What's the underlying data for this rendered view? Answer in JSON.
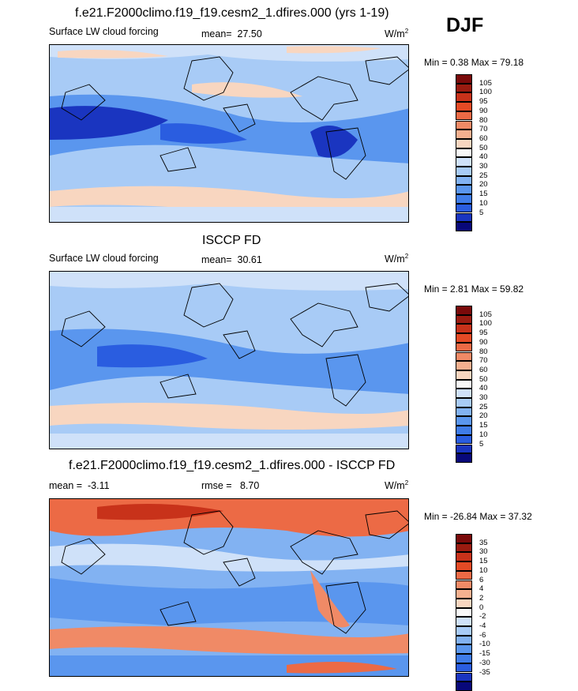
{
  "season": "DJF",
  "colors": {
    "abs_scale": [
      "#08087a",
      "#1a35c0",
      "#2a5de0",
      "#3f7ce8",
      "#5a96ee",
      "#82b2f2",
      "#a8cbf6",
      "#cfe1f9",
      "#f8f8f8",
      "#f8d6c0",
      "#f4b08f",
      "#f08a66",
      "#ec6a45",
      "#e44a25",
      "#c8321a",
      "#9a1b10",
      "#7a0a0a"
    ],
    "diff_scale": [
      "#08087a",
      "#1a35c0",
      "#2a5de0",
      "#3f7ce8",
      "#5a96ee",
      "#82b2f2",
      "#a8cbf6",
      "#cfe1f9",
      "#f8f8f8",
      "#f8d6c0",
      "#f4b08f",
      "#f08a66",
      "#ec6a45",
      "#e44a25",
      "#c8321a",
      "#9a1b10",
      "#7a0a0a"
    ]
  },
  "panel1": {
    "title": "f.e21.F2000climo.f19_f19.cesm2_1.dfires.000 (yrs 1-19)",
    "variable": "Surface LW cloud forcing",
    "mean_label": "mean=",
    "mean_value": "27.50",
    "units": "W/m",
    "units_exp": "2",
    "minmax": "Min =   0.38 Max =  79.18",
    "colorbar_labels": [
      "105",
      "100",
      "95",
      "90",
      "80",
      "70",
      "60",
      "50",
      "40",
      "30",
      "25",
      "20",
      "15",
      "10",
      "5"
    ]
  },
  "panel2": {
    "title": "ISCCP FD",
    "variable": "Surface LW cloud forcing",
    "mean_label": "mean=",
    "mean_value": "30.61",
    "units": "W/m",
    "units_exp": "2",
    "minmax": "Min =   2.81 Max =  59.82",
    "colorbar_labels": [
      "105",
      "100",
      "95",
      "90",
      "80",
      "70",
      "60",
      "50",
      "40",
      "30",
      "25",
      "20",
      "15",
      "10",
      "5"
    ]
  },
  "panel3": {
    "title": "f.e21.F2000climo.f19_f19.cesm2_1.dfires.000 - ISCCP FD",
    "mean_label": "mean =",
    "mean_value": "-3.11",
    "rmse_label": "rmse =",
    "rmse_value": "8.70",
    "units": "W/m",
    "units_exp": "2",
    "minmax": "Min = -26.84 Max =  37.32",
    "colorbar_labels": [
      "35",
      "30",
      "15",
      "10",
      "6",
      "4",
      "2",
      "0",
      "-2",
      "-4",
      "-6",
      "-10",
      "-15",
      "-30",
      "-35"
    ]
  },
  "chart_data": [
    {
      "type": "heatmap",
      "title": "f.e21.F2000climo.f19_f19.cesm2_1.dfires.000 (yrs 1-19)",
      "subtitle": "Surface LW cloud forcing",
      "units": "W/m2",
      "mean": 27.5,
      "min": 0.38,
      "max": 79.18,
      "levels": [
        5,
        10,
        15,
        20,
        25,
        30,
        40,
        50,
        60,
        70,
        80,
        90,
        95,
        100,
        105
      ],
      "projection": "cylindrical equidistant, global, centered 180"
    },
    {
      "type": "heatmap",
      "title": "ISCCP FD",
      "subtitle": "Surface LW cloud forcing",
      "units": "W/m2",
      "mean": 30.61,
      "min": 2.81,
      "max": 59.82,
      "levels": [
        5,
        10,
        15,
        20,
        25,
        30,
        40,
        50,
        60,
        70,
        80,
        90,
        95,
        100,
        105
      ],
      "projection": "cylindrical equidistant, global, centered 180"
    },
    {
      "type": "heatmap",
      "title": "f.e21.F2000climo.f19_f19.cesm2_1.dfires.000 - ISCCP FD",
      "units": "W/m2",
      "mean": -3.11,
      "rmse": 8.7,
      "min": -26.84,
      "max": 37.32,
      "levels": [
        -35,
        -30,
        -15,
        -10,
        -6,
        -4,
        -2,
        0,
        2,
        4,
        6,
        10,
        15,
        30,
        35
      ],
      "projection": "cylindrical equidistant, global, centered 180"
    }
  ]
}
